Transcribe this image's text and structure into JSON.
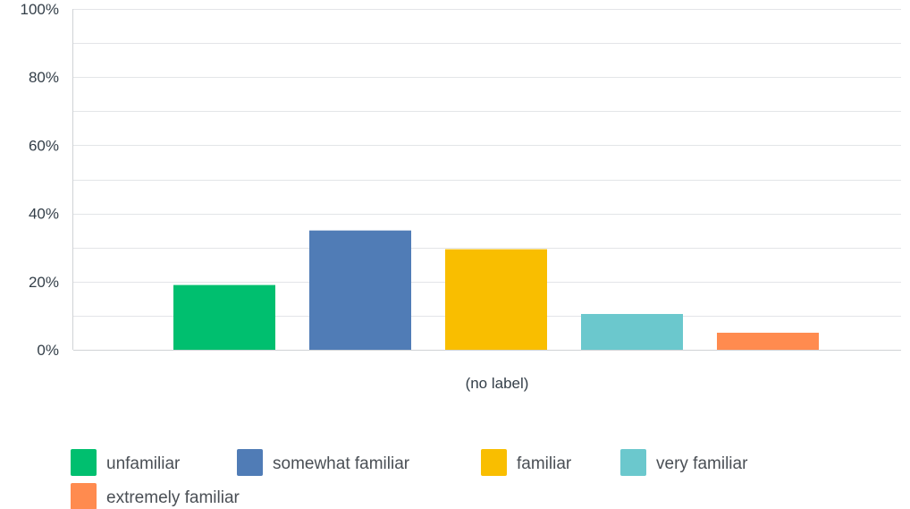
{
  "chart_data": {
    "type": "bar",
    "categories": [
      "(no label)"
    ],
    "series": [
      {
        "name": "unfamiliar",
        "values": [
          19
        ],
        "color": "#00bf6f"
      },
      {
        "name": "somewhat familiar",
        "values": [
          35
        ],
        "color": "#507cb6"
      },
      {
        "name": "familiar",
        "values": [
          29.5
        ],
        "color": "#f9be00"
      },
      {
        "name": "very familiar",
        "values": [
          10.5
        ],
        "color": "#6bc8cd"
      },
      {
        "name": "extremely familiar",
        "values": [
          5
        ],
        "color": "#ff8b4f"
      }
    ],
    "ylim": [
      0,
      100
    ],
    "yticks": [
      "0%",
      "20%",
      "40%",
      "60%",
      "80%",
      "100%"
    ],
    "ytick_values": [
      0,
      20,
      40,
      60,
      80,
      100
    ],
    "grid": true,
    "minor_grid_step": 10,
    "legend_position": "bottom-left",
    "gridline_color": "#e3e5e8"
  }
}
